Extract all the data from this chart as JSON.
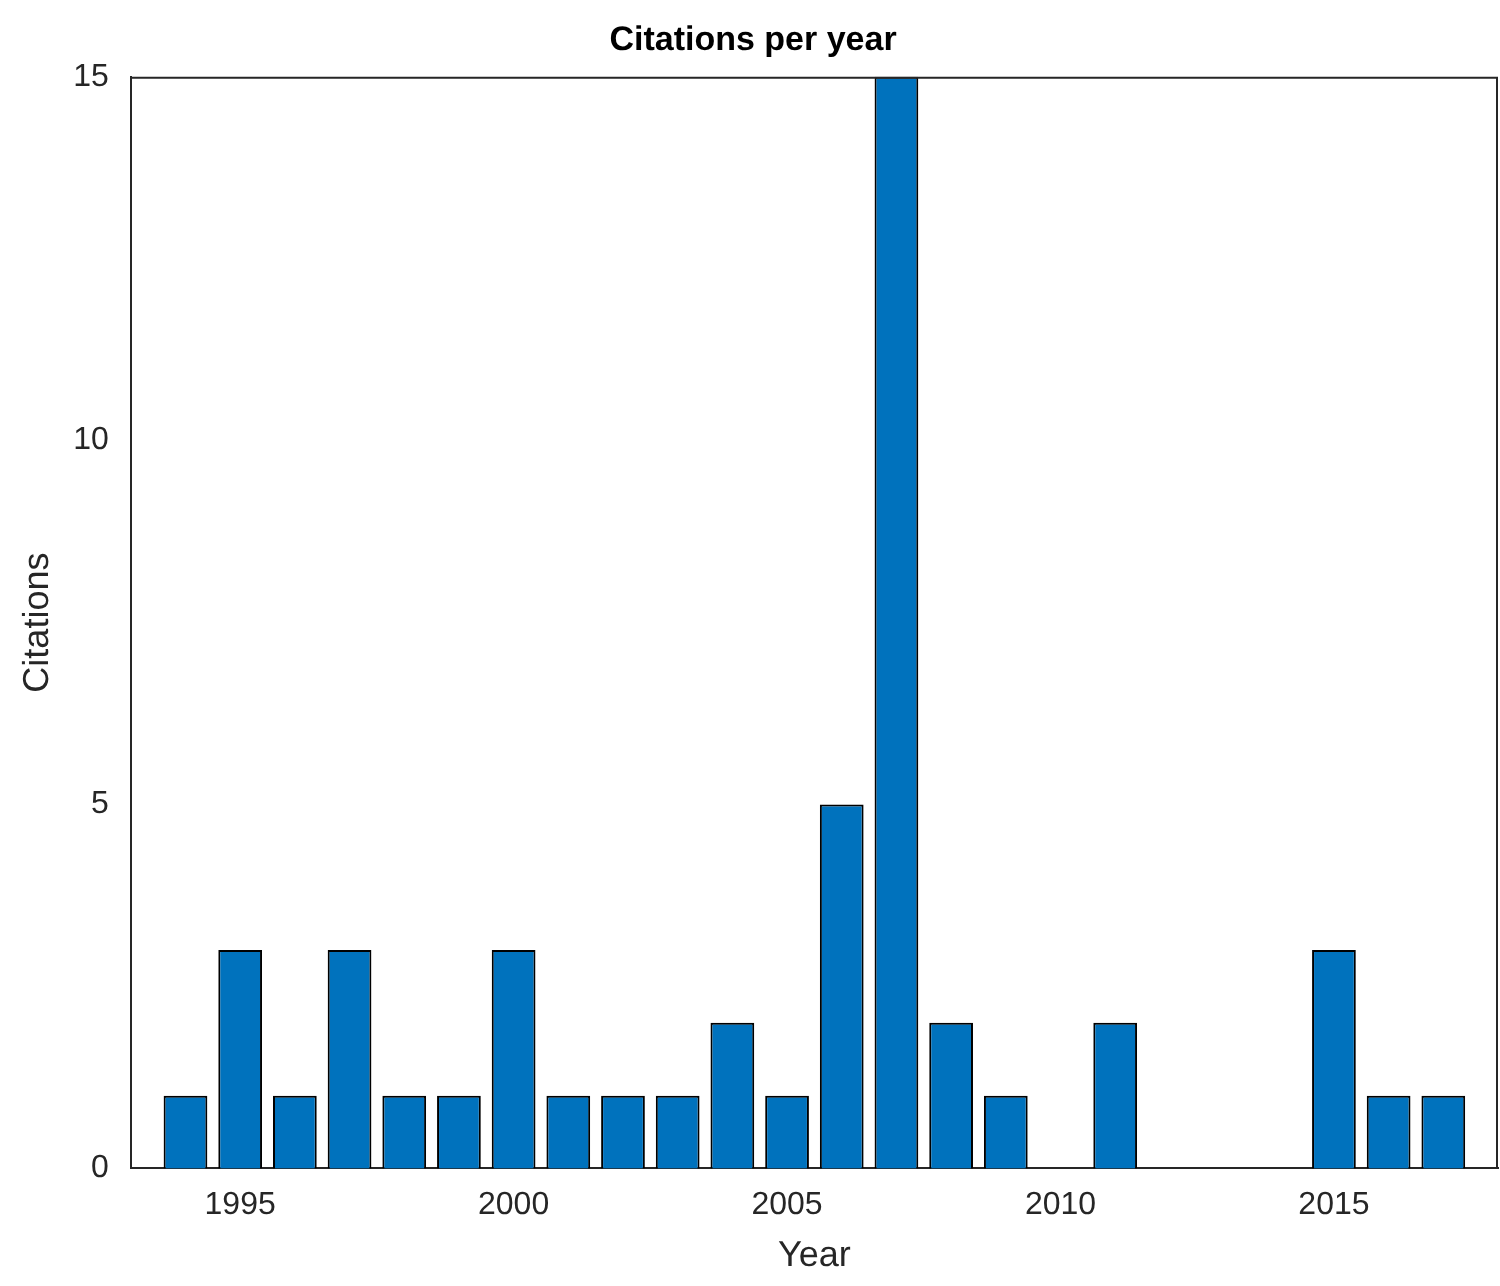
{
  "chart_data": {
    "type": "bar",
    "title": "Citations per year",
    "xlabel": "Year",
    "ylabel": "Citations",
    "x": [
      1994,
      1995,
      1996,
      1997,
      1998,
      1999,
      2000,
      2001,
      2002,
      2003,
      2004,
      2005,
      2006,
      2007,
      2008,
      2009,
      2010,
      2011,
      2012,
      2013,
      2014,
      2015,
      2016,
      2017
    ],
    "values": [
      1,
      3,
      1,
      3,
      1,
      1,
      3,
      1,
      1,
      1,
      2,
      1,
      5,
      15,
      2,
      1,
      0,
      2,
      0,
      0,
      0,
      3,
      1,
      1
    ],
    "color": "#0072bd",
    "xlim": [
      1993,
      2018
    ],
    "xticks": [
      1995,
      2000,
      2005,
      2010,
      2015
    ],
    "ylim": [
      0,
      15
    ],
    "yticks": [
      0,
      5,
      10,
      15
    ],
    "grid": false,
    "legend": false
  }
}
